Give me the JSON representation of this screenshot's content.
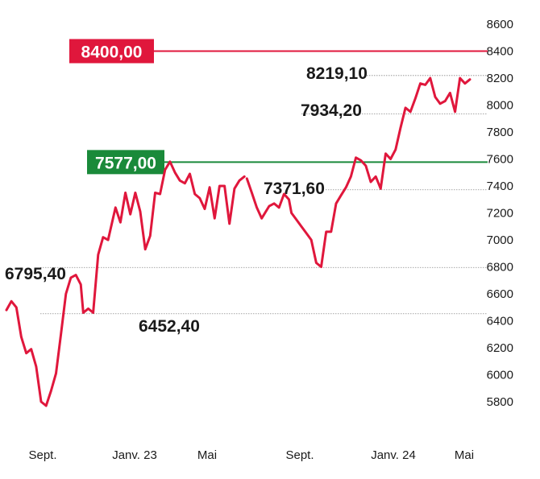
{
  "chart_data": {
    "type": "line",
    "x_ticks": [
      "Sept.",
      "Janv. 23",
      "Mai",
      "Sept.",
      "Janv. 24",
      "Mai"
    ],
    "y_ticks": [
      "8600",
      "8400",
      "8200",
      "8000",
      "7800",
      "7600",
      "7400",
      "7200",
      "7000",
      "6800",
      "6600",
      "6400",
      "6200",
      "6000",
      "5800"
    ],
    "ylim": [
      5740,
      8650
    ],
    "series": [
      {
        "color": "#e0173c",
        "segments": [
          [
            {
              "x": 0,
              "y": 6480
            },
            {
              "x": 2,
              "y": 6545
            },
            {
              "x": 4,
              "y": 6500
            },
            {
              "x": 6,
              "y": 6280
            },
            {
              "x": 8,
              "y": 6160
            },
            {
              "x": 10,
              "y": 6190
            },
            {
              "x": 12,
              "y": 6060
            },
            {
              "x": 14,
              "y": 5800
            },
            {
              "x": 16,
              "y": 5770
            },
            {
              "x": 18,
              "y": 5880
            },
            {
              "x": 20,
              "y": 6010
            },
            {
              "x": 22,
              "y": 6300
            },
            {
              "x": 24,
              "y": 6600
            },
            {
              "x": 26,
              "y": 6720
            },
            {
              "x": 28,
              "y": 6740
            },
            {
              "x": 30,
              "y": 6670
            },
            {
              "x": 31,
              "y": 6460
            },
            {
              "x": 33,
              "y": 6490
            },
            {
              "x": 35,
              "y": 6460
            },
            {
              "x": 37,
              "y": 6890
            },
            {
              "x": 39,
              "y": 7020
            },
            {
              "x": 41,
              "y": 7000
            },
            {
              "x": 44,
              "y": 7240
            },
            {
              "x": 46,
              "y": 7130
            },
            {
              "x": 48,
              "y": 7350
            },
            {
              "x": 50,
              "y": 7190
            },
            {
              "x": 52,
              "y": 7350
            },
            {
              "x": 54,
              "y": 7210
            },
            {
              "x": 56,
              "y": 6930
            },
            {
              "x": 58,
              "y": 7030
            },
            {
              "x": 60,
              "y": 7350
            },
            {
              "x": 62,
              "y": 7340
            },
            {
              "x": 64,
              "y": 7520
            },
            {
              "x": 66,
              "y": 7580
            },
            {
              "x": 68,
              "y": 7500
            },
            {
              "x": 70,
              "y": 7440
            },
            {
              "x": 72,
              "y": 7420
            },
            {
              "x": 74,
              "y": 7490
            },
            {
              "x": 76,
              "y": 7340
            },
            {
              "x": 78,
              "y": 7310
            },
            {
              "x": 80,
              "y": 7230
            },
            {
              "x": 82,
              "y": 7390
            },
            {
              "x": 84,
              "y": 7160
            },
            {
              "x": 86,
              "y": 7400
            },
            {
              "x": 88,
              "y": 7400
            },
            {
              "x": 90,
              "y": 7120
            },
            {
              "x": 92,
              "y": 7380
            },
            {
              "x": 94,
              "y": 7440
            },
            {
              "x": 96,
              "y": 7470
            }
          ],
          [
            {
              "x": 97,
              "y": 7455
            },
            {
              "x": 99,
              "y": 7350
            },
            {
              "x": 101,
              "y": 7240
            },
            {
              "x": 103,
              "y": 7160
            },
            {
              "x": 106,
              "y": 7250
            },
            {
              "x": 108,
              "y": 7270
            },
            {
              "x": 110,
              "y": 7240
            },
            {
              "x": 112,
              "y": 7340
            },
            {
              "x": 114,
              "y": 7300
            },
            {
              "x": 115,
              "y": 7200
            },
            {
              "x": 117,
              "y": 7150
            },
            {
              "x": 119,
              "y": 7100
            },
            {
              "x": 121,
              "y": 7050
            },
            {
              "x": 123,
              "y": 7000
            },
            {
              "x": 125,
              "y": 6830
            },
            {
              "x": 127,
              "y": 6800
            },
            {
              "x": 129,
              "y": 7060
            },
            {
              "x": 131,
              "y": 7060
            },
            {
              "x": 133,
              "y": 7270
            },
            {
              "x": 135,
              "y": 7330
            },
            {
              "x": 137,
              "y": 7390
            },
            {
              "x": 139,
              "y": 7470
            },
            {
              "x": 141,
              "y": 7610
            },
            {
              "x": 143,
              "y": 7590
            },
            {
              "x": 145,
              "y": 7550
            },
            {
              "x": 147,
              "y": 7430
            },
            {
              "x": 149,
              "y": 7470
            },
            {
              "x": 151,
              "y": 7380
            },
            {
              "x": 153,
              "y": 7640
            },
            {
              "x": 155,
              "y": 7600
            },
            {
              "x": 157,
              "y": 7670
            },
            {
              "x": 159,
              "y": 7830
            },
            {
              "x": 161,
              "y": 7980
            },
            {
              "x": 163,
              "y": 7950
            },
            {
              "x": 165,
              "y": 8050
            },
            {
              "x": 167,
              "y": 8160
            },
            {
              "x": 169,
              "y": 8150
            },
            {
              "x": 171,
              "y": 8200
            },
            {
              "x": 173,
              "y": 8060
            },
            {
              "x": 175,
              "y": 8010
            },
            {
              "x": 177,
              "y": 8030
            },
            {
              "x": 179,
              "y": 8090
            },
            {
              "x": 181,
              "y": 7950
            },
            {
              "x": 183,
              "y": 8200
            },
            {
              "x": 185,
              "y": 8160
            },
            {
              "x": 187,
              "y": 8190
            }
          ]
        ]
      }
    ],
    "reference_lines": [
      {
        "value": 8400,
        "label": "8400,00",
        "color": "#e0173c"
      },
      {
        "value": 7577,
        "label": "7577,00",
        "color": "#1a8a3a"
      }
    ],
    "level_lines": [
      8219.1,
      7934.2,
      7371.6,
      6795.4,
      6452.4
    ],
    "annotations": [
      "6795,40",
      "6452,40",
      "7371,60",
      "7934,20",
      "8219,10"
    ],
    "grid": false,
    "legend": "none"
  }
}
